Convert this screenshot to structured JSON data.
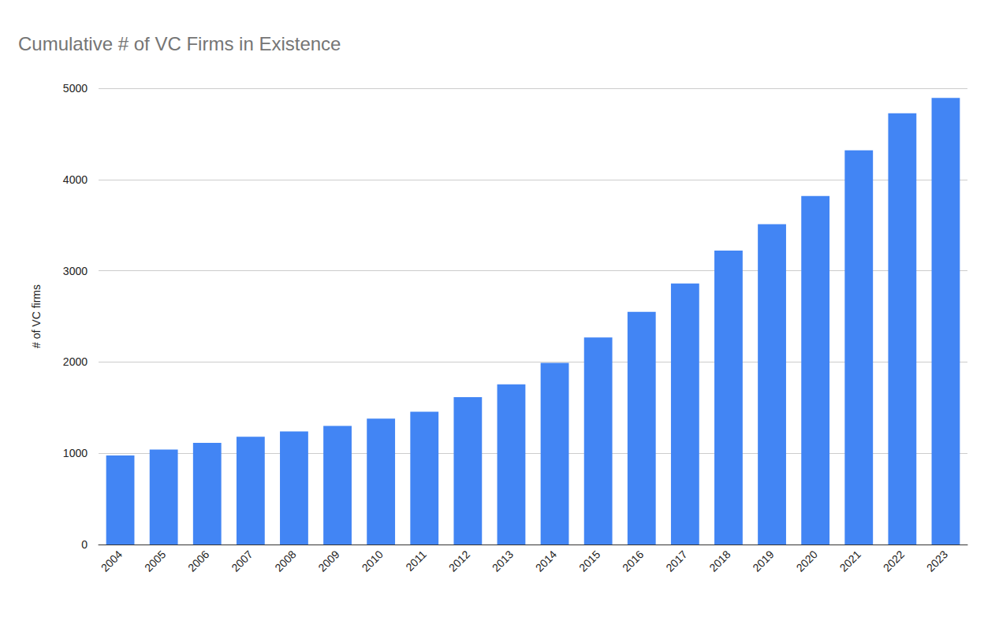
{
  "chart_data": {
    "type": "bar",
    "title": "Cumulative # of VC Firms in Existence",
    "y_label": "# of VC firms",
    "categories": [
      "2004",
      "2005",
      "2006",
      "2007",
      "2008",
      "2009",
      "2010",
      "2011",
      "2012",
      "2013",
      "2014",
      "2015",
      "2016",
      "2017",
      "2018",
      "2019",
      "2020",
      "2021",
      "2022",
      "2023"
    ],
    "values": [
      975,
      1040,
      1115,
      1180,
      1240,
      1300,
      1380,
      1455,
      1615,
      1755,
      1990,
      2270,
      2550,
      2860,
      3220,
      3510,
      3820,
      4320,
      4725,
      4895
    ],
    "color": "#4285f4",
    "ylim": [
      0,
      5000
    ],
    "yticks": [
      0,
      1000,
      2000,
      3000,
      4000,
      5000
    ],
    "grid": true
  }
}
